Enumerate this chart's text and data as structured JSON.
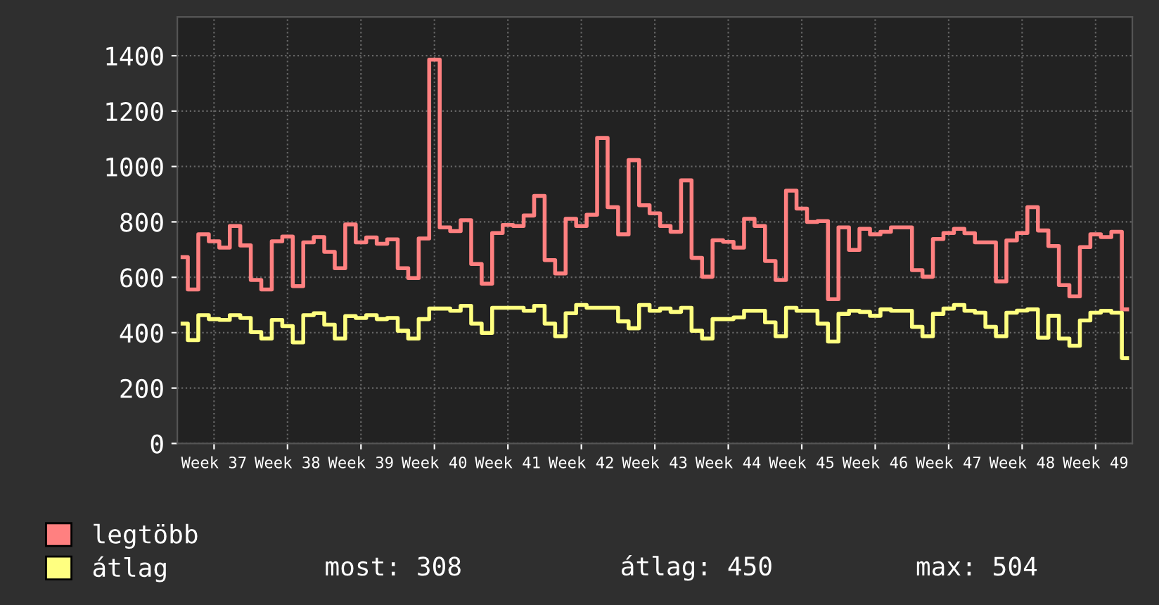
{
  "chart_data": {
    "type": "step",
    "categories": [
      null,
      null,
      null,
      "Week 37",
      null,
      null,
      null,
      null,
      null,
      null,
      "Week 38",
      null,
      null,
      null,
      null,
      null,
      null,
      "Week 39",
      null,
      null,
      null,
      null,
      null,
      null,
      "Week 40",
      null,
      null,
      null,
      null,
      null,
      null,
      "Week 41",
      null,
      null,
      null,
      null,
      null,
      null,
      "Week 42",
      null,
      null,
      null,
      null,
      null,
      null,
      "Week 43",
      null,
      null,
      null,
      null,
      null,
      null,
      "Week 44",
      null,
      null,
      null,
      null,
      null,
      null,
      "Week 45",
      null,
      null,
      null,
      null,
      null,
      null,
      "Week 46",
      null,
      null,
      null,
      null,
      null,
      null,
      "Week 47",
      null,
      null,
      null,
      null,
      null,
      null,
      "Week 48",
      null,
      null,
      null,
      null,
      null,
      null,
      "Week 49",
      null,
      null,
      null
    ],
    "series": [
      {
        "name": "legtöbb",
        "color": "#ff8080",
        "values": [
          673,
          556,
          755,
          730,
          707,
          785,
          715,
          590,
          556,
          730,
          747,
          568,
          726,
          745,
          692,
          633,
          791,
          726,
          744,
          721,
          737,
          633,
          597,
          740,
          1386,
          780,
          767,
          806,
          648,
          577,
          760,
          789,
          785,
          823,
          894,
          662,
          614,
          811,
          785,
          826,
          1103,
          853,
          755,
          1023,
          860,
          831,
          785,
          764,
          950,
          670,
          602,
          734,
          728,
          707,
          811,
          785,
          659,
          590,
          913,
          848,
          800,
          803,
          521,
          780,
          699,
          775,
          755,
          764,
          780,
          780,
          626,
          602,
          738,
          760,
          775,
          759,
          726,
          726,
          585,
          733,
          760,
          853,
          769,
          713,
          572,
          531,
          709,
          755,
          745,
          764,
          484
        ]
      },
      {
        "name": "átlag",
        "color": "#ffff80",
        "values": [
          433,
          373,
          463,
          449,
          446,
          463,
          453,
          402,
          379,
          446,
          424,
          365,
          463,
          470,
          429,
          379,
          460,
          453,
          463,
          449,
          453,
          407,
          379,
          449,
          487,
          487,
          479,
          497,
          433,
          399,
          490,
          490,
          490,
          479,
          497,
          433,
          387,
          470,
          500,
          490,
          490,
          490,
          441,
          416,
          500,
          479,
          487,
          475,
          490,
          407,
          379,
          449,
          449,
          455,
          479,
          479,
          437,
          387,
          490,
          479,
          479,
          433,
          368,
          468,
          479,
          475,
          461,
          484,
          479,
          479,
          421,
          387,
          468,
          487,
          500,
          479,
          472,
          421,
          387,
          472,
          480,
          484,
          382,
          461,
          379,
          353,
          444,
          472,
          479,
          472,
          308
        ]
      }
    ],
    "ylim": [
      0,
      1540
    ],
    "yticks": [
      0,
      200,
      400,
      600,
      800,
      1000,
      1200,
      1400
    ],
    "grid": true,
    "line_style": "solid",
    "legend": "bottom left",
    "annotations": [
      "most: 308",
      "átlag: 450",
      "max: 504"
    ]
  }
}
